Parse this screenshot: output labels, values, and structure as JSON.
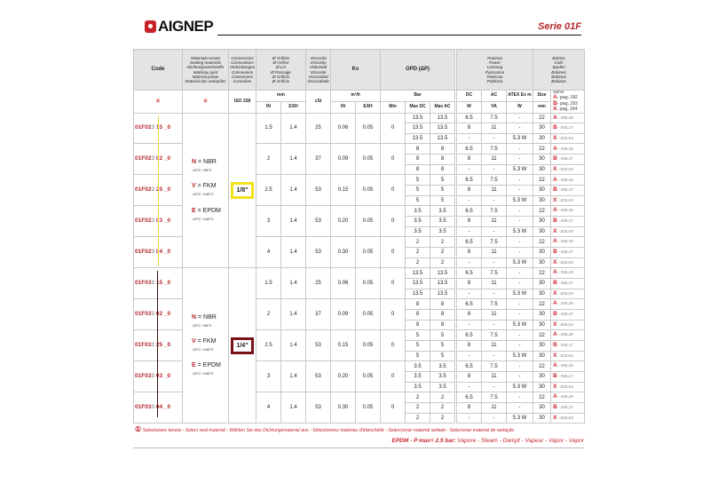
{
  "brand": "AIGNEP",
  "serie": "Serie 01F",
  "headers": {
    "code": "Code",
    "materials": [
      "Materiale tenuta",
      "Sealing materials",
      "Dichtungswerkstoffe",
      "Matériau joint",
      "Material juntas",
      "Material das vedações"
    ],
    "connections": [
      "Connessioni",
      "Connections",
      "Verbindungen",
      "Connexions",
      "Conexiones",
      "Conexões"
    ],
    "orifice": [
      "Ø Orifizio",
      "Ø Orifice",
      "Ø Lin",
      "Ø Passage",
      "Ø Orificio",
      "Ø Orifício"
    ],
    "viscosity": [
      "Viscosità",
      "Viscosity",
      "Viskosität",
      "Viscosité",
      "Viscosidad",
      "Viscosidade"
    ],
    "kv": "Kv",
    "opd": "OPD (ΔP)",
    "power": [
      "Potenza",
      "Power",
      "Leistung",
      "Puissance",
      "Potencia",
      "Potência"
    ],
    "coils": [
      "Bobina",
      "Coils",
      "Spulen",
      "Bobines",
      "Bobinas",
      "Bobinas"
    ]
  },
  "units": {
    "select_marker": "①",
    "iso": "ISO 228",
    "mm": "mm",
    "in": "IN",
    "exh": "EXH",
    "cst": "cSt",
    "m3h": "m³/h",
    "bar": "Bar",
    "min": "Min",
    "max_dc": "Max DC",
    "max_ac": "Max AC",
    "dc": "DC",
    "ac": "AC",
    "atex": "ATEX Ex m",
    "w": "W",
    "va": "VA",
    "size": "Size",
    "size_unit": "mm",
    "serie_title": "Serie",
    "serie_pages": [
      {
        "k": "A",
        "t": "- pag. 192"
      },
      {
        "k": "B",
        "t": "- pag. 193"
      },
      {
        "k": "X",
        "t": "- pag. 194"
      }
    ]
  },
  "materials": [
    {
      "key": "N",
      "name": "= NBR",
      "temp": "-10°C  +90°C"
    },
    {
      "key": "V",
      "name": "= FKM",
      "temp": "-10°C  +140°C"
    },
    {
      "key": "E",
      "name": "= EPDM",
      "temp": "-10°C  +140°C"
    }
  ],
  "coil_rows": [
    {
      "dc": "6.5",
      "ac": "7.5",
      "atex": "-",
      "size": "22",
      "key": "A",
      "serie": "- SOL19"
    },
    {
      "dc": "8",
      "ac": "11",
      "atex": "-",
      "size": "30",
      "key": "B",
      "serie": "- SOL17"
    },
    {
      "dc": "-",
      "ac": "-",
      "atex": "5.3 W",
      "size": "30",
      "key": "X",
      "serie": "- SOLX4"
    }
  ],
  "groups": [
    {
      "connection": "1/8\"",
      "frame_color": "#f3e21a",
      "line_color": "#e8d94a",
      "codes": [
        {
          "prefix": "01F02",
          "mid": "3",
          "suffix": " 15 _0",
          "orifice": "1.5",
          "exh": "1.4",
          "cst": "25",
          "kv_in": "0.06",
          "kv_exh": "0.05",
          "min": "0",
          "max": "13.5"
        },
        {
          "prefix": "01F02",
          "mid": "3",
          "suffix": " 02 _0",
          "orifice": "2",
          "exh": "1.4",
          "cst": "37",
          "kv_in": "0.09",
          "kv_exh": "0.05",
          "min": "0",
          "max": "8"
        },
        {
          "prefix": "01F02",
          "mid": "3",
          "suffix": " 25 _0",
          "orifice": "2.5",
          "exh": "1.4",
          "cst": "53",
          "kv_in": "0.15",
          "kv_exh": "0.05",
          "min": "0",
          "max": "5"
        },
        {
          "prefix": "01F02",
          "mid": "3",
          "suffix": " 03 _0",
          "orifice": "3",
          "exh": "1.4",
          "cst": "53",
          "kv_in": "0.20",
          "kv_exh": "0.05",
          "min": "0",
          "max": "3.5"
        },
        {
          "prefix": "01F02",
          "mid": "3",
          "suffix": " 04 _0",
          "orifice": "4",
          "exh": "1.4",
          "cst": "53",
          "kv_in": "0.30",
          "kv_exh": "0.05",
          "min": "0",
          "max": "2"
        }
      ]
    },
    {
      "connection": "1/4\"",
      "frame_color": "#7a1218",
      "line_color": "#3a1010",
      "codes": [
        {
          "prefix": "01F03",
          "mid": "3",
          "suffix": " 15 _0",
          "orifice": "1.5",
          "exh": "1.4",
          "cst": "25",
          "kv_in": "0.06",
          "kv_exh": "0.05",
          "min": "0",
          "max": "13.5"
        },
        {
          "prefix": "01F03",
          "mid": "3",
          "suffix": " 02 _0",
          "orifice": "2",
          "exh": "1.4",
          "cst": "37",
          "kv_in": "0.09",
          "kv_exh": "0.05",
          "min": "0",
          "max": "8"
        },
        {
          "prefix": "01F03",
          "mid": "3",
          "suffix": " 25 _0",
          "orifice": "2.5",
          "exh": "1.4",
          "cst": "53",
          "kv_in": "0.15",
          "kv_exh": "0.05",
          "min": "0",
          "max": "5"
        },
        {
          "prefix": "01F03",
          "mid": "3",
          "suffix": " 03 _0",
          "orifice": "3",
          "exh": "1.4",
          "cst": "53",
          "kv_in": "0.20",
          "kv_exh": "0.05",
          "min": "0",
          "max": "3.5"
        },
        {
          "prefix": "01F03",
          "mid": "3",
          "suffix": " 04 _0",
          "orifice": "4",
          "exh": "1.4",
          "cst": "53",
          "kv_in": "0.30",
          "kv_exh": "0.05",
          "min": "0",
          "max": "2"
        }
      ]
    }
  ],
  "footnote": {
    "marker": "①",
    "text": "Selezionare tenuta - Select seal material - Wählen Sie das Dichtungsmaterial aus - Sélectionnez matériau d'étanchéité - Seleccionar material sellado - Selecionar material de vedação"
  },
  "epdm_note": {
    "label": "EPDM - P max= 2.5 bar:",
    "text": "Vapore - Steam - Dampf - Vapeur - Vapor - Vapor"
  }
}
